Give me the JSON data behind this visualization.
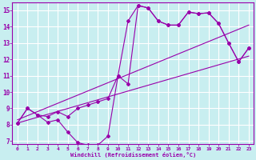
{
  "color": "#9900aa",
  "bg_color": "#c8eef0",
  "grid_color": "#ffffff",
  "xlabel": "Windchill (Refroidissement éolien,°C)",
  "xlim": [
    -0.5,
    23.5
  ],
  "ylim": [
    6.8,
    15.5
  ],
  "yticks": [
    7,
    8,
    9,
    10,
    11,
    12,
    13,
    14,
    15
  ],
  "xticks": [
    0,
    1,
    2,
    3,
    4,
    5,
    6,
    7,
    8,
    9,
    10,
    11,
    12,
    13,
    14,
    15,
    16,
    17,
    18,
    19,
    20,
    21,
    22,
    23
  ],
  "line_zigzag_x": [
    0,
    1,
    2,
    3,
    4,
    5,
    6,
    7,
    8,
    9,
    10,
    11,
    12,
    13,
    14,
    15,
    16,
    17,
    18,
    19,
    20,
    21,
    22,
    23
  ],
  "line_zigzag_y": [
    8.1,
    9.0,
    8.6,
    8.15,
    8.3,
    7.55,
    6.9,
    6.75,
    6.75,
    7.3,
    11.0,
    10.5,
    15.3,
    15.15,
    14.35,
    14.1,
    14.1,
    14.9,
    14.8,
    14.85,
    14.2,
    13.0,
    11.85,
    12.7
  ],
  "line_upper_x": [
    0,
    1,
    2,
    3,
    4,
    5,
    6,
    7,
    8,
    9,
    10,
    11,
    12,
    13,
    14,
    15,
    16,
    17,
    18,
    19,
    20,
    21,
    22,
    23
  ],
  "line_upper_y": [
    8.1,
    9.0,
    8.6,
    8.5,
    8.8,
    8.5,
    9.0,
    9.2,
    9.4,
    9.6,
    11.0,
    14.35,
    15.3,
    15.15,
    14.35,
    14.1,
    14.1,
    14.9,
    14.8,
    14.85,
    14.2,
    13.0,
    11.85,
    12.7
  ],
  "line_trend1_x": [
    0,
    23
  ],
  "line_trend1_y": [
    8.1,
    12.2
  ],
  "line_trend2_x": [
    0,
    23
  ],
  "line_trend2_y": [
    8.3,
    14.1
  ]
}
